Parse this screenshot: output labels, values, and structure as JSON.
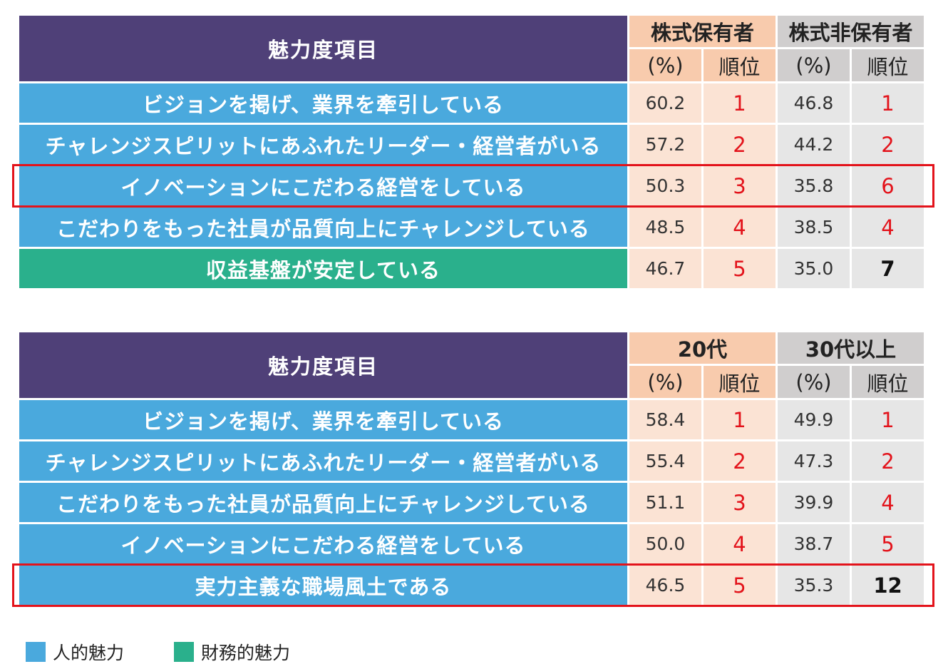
{
  "colors": {
    "header": "#4f4078",
    "human": "#4aa9dd",
    "finance": "#2ab08c",
    "group1_header": "#f8cbad",
    "group1_cell": "#fbe3d4",
    "group2_header": "#d0cece",
    "group2_cell": "#e6e6e6",
    "rank_red": "#e3131b",
    "highlight_border": "#e3131b"
  },
  "chart_data": [
    {
      "type": "table",
      "header": "魅力度項目",
      "groups": [
        {
          "title": "株式保有者",
          "sub": [
            "(%)",
            "順位"
          ]
        },
        {
          "title": "株式非保有者",
          "sub": [
            "(%)",
            "順位"
          ]
        }
      ],
      "rows": [
        {
          "label": "ビジョンを掲げ、業界を牽引している",
          "category": "human",
          "highlight": false,
          "g1_pct": "60.2",
          "g1_rank": "1",
          "g2_pct": "46.8",
          "g2_rank": "1",
          "g2_rank_red": true
        },
        {
          "label": "チャレンジスピリットにあふれたリーダー・経営者がいる",
          "category": "human",
          "highlight": false,
          "g1_pct": "57.2",
          "g1_rank": "2",
          "g2_pct": "44.2",
          "g2_rank": "2",
          "g2_rank_red": true
        },
        {
          "label": "イノベーションにこだわる経営をしている",
          "category": "human",
          "highlight": true,
          "g1_pct": "50.3",
          "g1_rank": "3",
          "g2_pct": "35.8",
          "g2_rank": "6",
          "g2_rank_red": true
        },
        {
          "label": "こだわりをもった社員が品質向上にチャレンジしている",
          "category": "human",
          "highlight": false,
          "g1_pct": "48.5",
          "g1_rank": "4",
          "g2_pct": "38.5",
          "g2_rank": "4",
          "g2_rank_red": true
        },
        {
          "label": "収益基盤が安定している",
          "category": "finance",
          "highlight": false,
          "g1_pct": "46.7",
          "g1_rank": "5",
          "g2_pct": "35.0",
          "g2_rank": "7",
          "g2_rank_red": false
        }
      ]
    },
    {
      "type": "table",
      "header": "魅力度項目",
      "groups": [
        {
          "title": "20代",
          "sub": [
            "(%)",
            "順位"
          ]
        },
        {
          "title": "30代以上",
          "sub": [
            "(%)",
            "順位"
          ]
        }
      ],
      "rows": [
        {
          "label": "ビジョンを掲げ、業界を牽引している",
          "category": "human",
          "highlight": false,
          "g1_pct": "58.4",
          "g1_rank": "1",
          "g2_pct": "49.9",
          "g2_rank": "1",
          "g2_rank_red": true
        },
        {
          "label": "チャレンジスピリットにあふれたリーダー・経営者がいる",
          "category": "human",
          "highlight": false,
          "g1_pct": "55.4",
          "g1_rank": "2",
          "g2_pct": "47.3",
          "g2_rank": "2",
          "g2_rank_red": true
        },
        {
          "label": "こだわりをもった社員が品質向上にチャレンジしている",
          "category": "human",
          "highlight": false,
          "g1_pct": "51.1",
          "g1_rank": "3",
          "g2_pct": "39.9",
          "g2_rank": "4",
          "g2_rank_red": true
        },
        {
          "label": "イノベーションにこだわる経営をしている",
          "category": "human",
          "highlight": false,
          "g1_pct": "50.0",
          "g1_rank": "4",
          "g2_pct": "38.7",
          "g2_rank": "5",
          "g2_rank_red": true
        },
        {
          "label": "実力主義な職場風土である",
          "category": "human",
          "highlight": true,
          "g1_pct": "46.5",
          "g1_rank": "5",
          "g2_pct": "35.3",
          "g2_rank": "12",
          "g2_rank_red": false
        }
      ]
    }
  ],
  "legend": [
    {
      "label": "人的魅力",
      "category": "human"
    },
    {
      "label": "財務的魅力",
      "category": "finance"
    }
  ]
}
